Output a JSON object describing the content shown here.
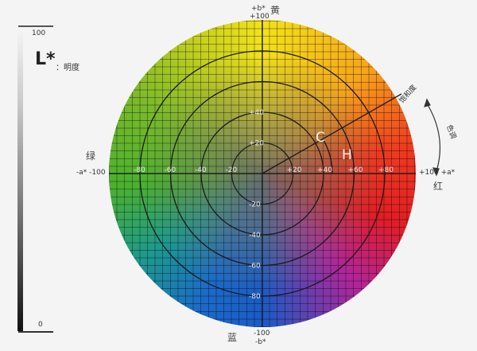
{
  "lightness": {
    "symbol": "L*",
    "name": "：明度",
    "max": "100",
    "min": "0"
  },
  "axes": {
    "b_plus": "+b*",
    "b_plus_val": "+100",
    "yellow": "黄",
    "b_minus": "-b*",
    "b_minus_val": "-100",
    "blue": "蓝",
    "a_plus": "+100 +a*",
    "red": "红",
    "a_minus": "-a* -100",
    "green": "绿"
  },
  "ticks_a": [
    "-80",
    "-60",
    "-40",
    "-20",
    "+20",
    "+40",
    "+60",
    "+80"
  ],
  "ticks_b": [
    "+20",
    "+40",
    "-20",
    "-40",
    "-60",
    "-80"
  ],
  "annotations": {
    "chroma": "C",
    "hue": "H",
    "saturation": "饱和度",
    "hue_cn": "色调"
  },
  "colors": {
    "yellow": "#f2e21a",
    "red": "#e01e25",
    "blue": "#1b5bc4",
    "green": "#4bb02f"
  }
}
